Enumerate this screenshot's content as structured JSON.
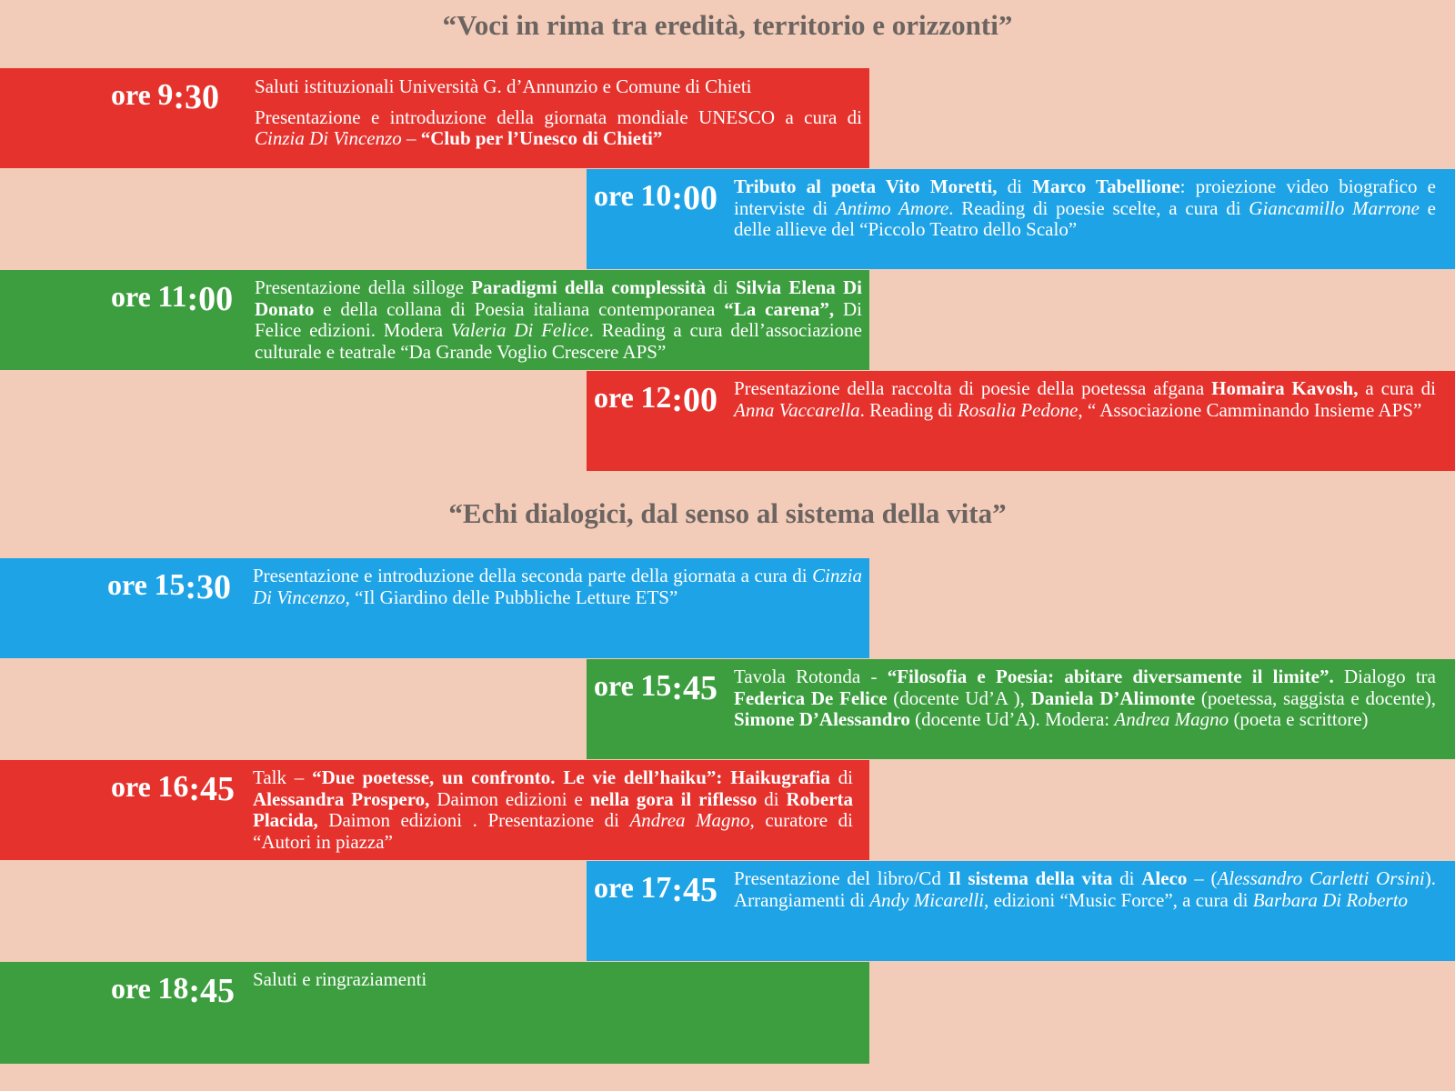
{
  "sections": [
    {
      "title": "“Voci in rima tra eredità, territorio e orizzonti”"
    },
    {
      "title": "“Echi dialogici, dal senso al sistema della vita”"
    }
  ],
  "events": [
    {
      "ore": "ore",
      "hour": "9",
      "minutes": ":30",
      "color": "#e5322d",
      "lines": [
        "Saluti istituzionali Università G. d’Annunzio e Comune di Chieti",
        "Presentazione e introduzione della giornata mondiale UNESCO a",
        "cura di ",
        "Cinzia Di Vincenzo",
        " – ",
        "“Club per l’Unesco di Chieti”"
      ]
    },
    {
      "ore": "ore",
      "hour": "10",
      "minutes": ":00",
      "color": "#1ea3e6",
      "parts": [
        "Tributo al poeta Vito Moretti,",
        " di ",
        "Marco Tabellione",
        ": proiezione video biografico e interviste di ",
        "Antimo Amore",
        ". Reading di poesie scelte, a cura di ",
        "Giancamillo Marrone",
        " e delle allieve del “Piccolo Teatro dello Scalo”"
      ]
    },
    {
      "ore": "ore",
      "hour": "11",
      "minutes": ":00",
      "color": "#3c9e3f",
      "parts": [
        "Presentazione della silloge ",
        "Paradigmi della complessità",
        " di ",
        "Silvia Elena Di Donato",
        " e della collana di Poesia italiana contemporanea ",
        "“La carena”,",
        " Di Felice edizioni. Modera ",
        "Valeria Di Felice",
        ". Reading a cura dell’associazione culturale e teatrale “Da Grande Voglio Crescere APS”"
      ]
    },
    {
      "ore": "ore",
      "hour": "12",
      "minutes": ":00",
      "color": "#e5322d",
      "parts": [
        "Presentazione della raccolta di poesie della poetessa afgana ",
        "Homaira Kavosh,",
        " a cura di ",
        "Anna Vaccarella",
        ". Reading di ",
        "Rosalia Pedone",
        ", “ Associazione Camminando Insieme APS”"
      ]
    },
    {
      "ore": "ore",
      "hour": "15",
      "minutes": ":30",
      "color": "#1ea3e6",
      "parts": [
        "Presentazione e introduzione della seconda parte della giornata a cura di ",
        "Cinzia Di Vincenzo",
        ", “Il Giardino delle Pubbliche Letture ETS”"
      ]
    },
    {
      "ore": "ore",
      "hour": "15",
      "minutes": ":45",
      "color": "#3c9e3f",
      "parts": [
        "Tavola Rotonda - ",
        "“Filosofia e Poesia: abitare diversamente il limite”.",
        " Dialogo tra ",
        "Federica De Felice",
        " (docente Ud’A ), ",
        "Daniela D’Alimonte",
        " (poetessa, saggista e docente), ",
        "Simone D’Alessandro",
        " (docente Ud’A). Modera: ",
        "Andrea Magno",
        " (poeta e scrittore)"
      ]
    },
    {
      "ore": "ore",
      "hour": "16",
      "minutes": ":45",
      "color": "#e5322d",
      "parts": [
        "Talk – ",
        "“Due poetesse, un confronto. Le vie dell’haiku”: Haikugrafia",
        " di ",
        "Alessandra Prospero,",
        " Daimon edizioni  e ",
        "nella gora il riflesso",
        " di ",
        "Roberta Placida,",
        " Daimon edizioni . Presentazione di ",
        "Andrea Magno,",
        " curatore di “Autori in piazza”"
      ]
    },
    {
      "ore": "ore",
      "hour": "17",
      "minutes": ":45",
      "color": "#1ea3e6",
      "parts": [
        "Presentazione del libro/Cd ",
        "Il sistema della vita",
        " di ",
        "Aleco",
        " – (",
        "Alessandro Carletti Orsini",
        "). Arrangiamenti di ",
        "Andy Micarelli,",
        " edizioni “Music Force”, a cura di ",
        "Barbara Di Roberto"
      ]
    },
    {
      "ore": "ore",
      "hour": "18",
      "minutes": ":45",
      "color": "#3c9e3f",
      "parts": [
        "Saluti e ringraziamenti"
      ]
    }
  ]
}
